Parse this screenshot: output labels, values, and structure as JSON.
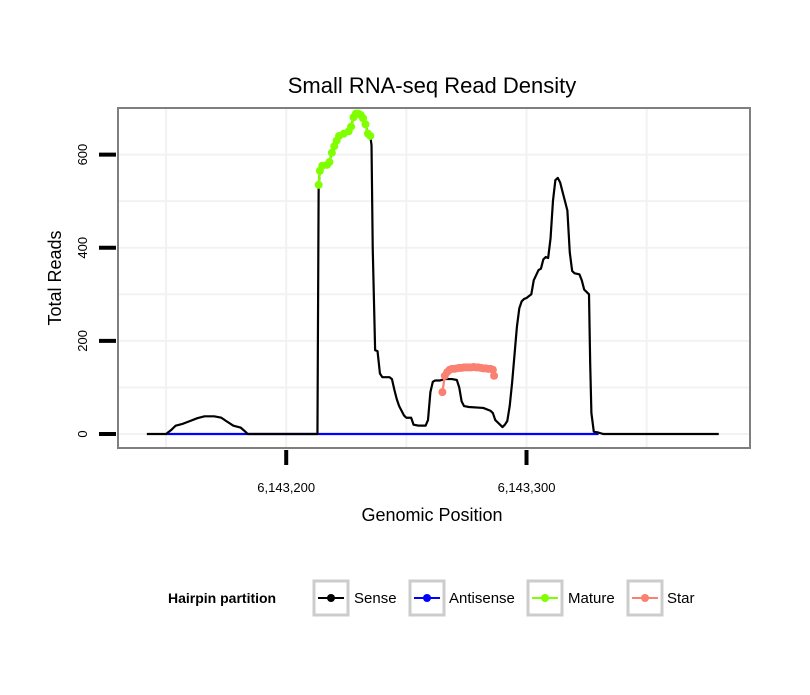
{
  "chart_data": {
    "type": "line",
    "title": "Small RNA-seq Read Density",
    "xlabel": "Genomic Position",
    "ylabel": "Total Reads",
    "xlim": [
      6143130,
      6143393
    ],
    "ylim": [
      -30,
      700
    ],
    "x_ticks": [
      {
        "value": 6143200,
        "label": "6,143,200"
      },
      {
        "value": 6143300,
        "label": "6,143,300"
      }
    ],
    "y_ticks": [
      {
        "value": 0,
        "label": "0"
      },
      {
        "value": 200,
        "label": "200"
      },
      {
        "value": 400,
        "label": "400"
      },
      {
        "value": 600,
        "label": "600"
      }
    ],
    "grid": true,
    "legend": {
      "title": "Hairpin partition",
      "position": "bottom",
      "entries": [
        {
          "name": "Sense",
          "color": "#000000"
        },
        {
          "name": "Antisense",
          "color": "#0000ff"
        },
        {
          "name": "Mature",
          "color": "#7fff00"
        },
        {
          "name": "Star",
          "color": "#fa8072"
        }
      ]
    },
    "series": [
      {
        "name": "Sense",
        "color": "#000000",
        "style": "line",
        "points": [
          [
            6143142,
            0
          ],
          [
            6143150,
            0
          ],
          [
            6143152,
            8
          ],
          [
            6143154,
            18
          ],
          [
            6143157,
            22
          ],
          [
            6143160,
            28
          ],
          [
            6143163,
            34
          ],
          [
            6143166,
            38
          ],
          [
            6143170,
            38
          ],
          [
            6143173,
            35
          ],
          [
            6143175,
            28
          ],
          [
            6143178,
            18
          ],
          [
            6143181,
            14
          ],
          [
            6143183,
            5
          ],
          [
            6143184,
            0
          ],
          [
            6143200,
            0
          ],
          [
            6143213,
            0
          ],
          [
            6143213.5,
            535
          ],
          [
            6143214,
            565
          ],
          [
            6143215,
            576
          ],
          [
            6143217,
            578
          ],
          [
            6143218,
            584
          ],
          [
            6143219,
            604
          ],
          [
            6143220,
            618
          ],
          [
            6143221,
            630
          ],
          [
            6143222,
            640
          ],
          [
            6143224,
            645
          ],
          [
            6143226,
            650
          ],
          [
            6143227,
            660
          ],
          [
            6143228,
            680
          ],
          [
            6143229,
            688
          ],
          [
            6143230,
            688
          ],
          [
            6143231,
            685
          ],
          [
            6143232,
            678
          ],
          [
            6143233,
            665
          ],
          [
            6143234,
            645
          ],
          [
            6143235,
            640
          ],
          [
            6143235.5,
            620
          ],
          [
            6143236,
            400
          ],
          [
            6143236.5,
            290
          ],
          [
            6143237,
            180
          ],
          [
            6143238,
            178
          ],
          [
            6143239,
            130
          ],
          [
            6143240,
            122
          ],
          [
            6143243,
            122
          ],
          [
            6143244,
            118
          ],
          [
            6143245,
            95
          ],
          [
            6143246,
            75
          ],
          [
            6143247,
            60
          ],
          [
            6143248,
            50
          ],
          [
            6143249,
            40
          ],
          [
            6143250,
            35
          ],
          [
            6143252,
            35
          ],
          [
            6143253,
            20
          ],
          [
            6143255,
            18
          ],
          [
            6143258,
            18
          ],
          [
            6143259,
            30
          ],
          [
            6143260,
            90
          ],
          [
            6143261,
            112
          ],
          [
            6143262,
            115
          ],
          [
            6143264,
            115
          ],
          [
            6143266,
            118
          ],
          [
            6143269,
            118
          ],
          [
            6143271,
            116
          ],
          [
            6143272,
            100
          ],
          [
            6143273,
            70
          ],
          [
            6143274,
            60
          ],
          [
            6143276,
            58
          ],
          [
            6143282,
            56
          ],
          [
            6143285,
            50
          ],
          [
            6143286,
            45
          ],
          [
            6143287,
            30
          ],
          [
            6143288,
            25
          ],
          [
            6143290,
            15
          ],
          [
            6143291,
            20
          ],
          [
            6143292,
            28
          ],
          [
            6143293,
            60
          ],
          [
            6143294,
            110
          ],
          [
            6143295,
            170
          ],
          [
            6143296,
            230
          ],
          [
            6143297,
            270
          ],
          [
            6143298,
            285
          ],
          [
            6143299,
            290
          ],
          [
            6143300,
            292
          ],
          [
            6143302,
            300
          ],
          [
            6143303,
            330
          ],
          [
            6143305,
            352
          ],
          [
            6143306,
            355
          ],
          [
            6143307,
            375
          ],
          [
            6143308,
            380
          ],
          [
            6143309,
            378
          ],
          [
            6143310,
            420
          ],
          [
            6143311,
            500
          ],
          [
            6143312,
            545
          ],
          [
            6143313,
            550
          ],
          [
            6143314,
            540
          ],
          [
            6143315,
            520
          ],
          [
            6143316,
            500
          ],
          [
            6143317,
            480
          ],
          [
            6143318,
            390
          ],
          [
            6143319,
            350
          ],
          [
            6143320,
            345
          ],
          [
            6143322,
            343
          ],
          [
            6143323,
            330
          ],
          [
            6143324,
            310
          ],
          [
            6143325,
            305
          ],
          [
            6143326,
            300
          ],
          [
            6143326.5,
            150
          ],
          [
            6143327,
            45
          ],
          [
            6143328,
            5
          ],
          [
            6143330,
            3
          ],
          [
            6143332,
            0
          ],
          [
            6143350,
            0
          ],
          [
            6143370,
            0
          ],
          [
            6143380,
            0
          ]
        ]
      },
      {
        "name": "Antisense",
        "color": "#0000ff",
        "style": "line",
        "points": [
          [
            6143150,
            0
          ],
          [
            6143330,
            0
          ]
        ]
      },
      {
        "name": "Mature",
        "color": "#7fff00",
        "style": "line+points",
        "points": [
          [
            6143213.5,
            535
          ],
          [
            6143214,
            565
          ],
          [
            6143215,
            576
          ],
          [
            6143217,
            578
          ],
          [
            6143218,
            584
          ],
          [
            6143219,
            604
          ],
          [
            6143220,
            618
          ],
          [
            6143221,
            630
          ],
          [
            6143222,
            640
          ],
          [
            6143224,
            645
          ],
          [
            6143226,
            650
          ],
          [
            6143227,
            660
          ],
          [
            6143228,
            680
          ],
          [
            6143229,
            688
          ],
          [
            6143230,
            688
          ],
          [
            6143231,
            685
          ],
          [
            6143232,
            678
          ],
          [
            6143233,
            665
          ],
          [
            6143234,
            645
          ],
          [
            6143235,
            640
          ]
        ]
      },
      {
        "name": "Star",
        "color": "#fa8072",
        "style": "line+points",
        "points": [
          [
            6143265,
            90
          ],
          [
            6143266,
            125
          ],
          [
            6143267,
            133
          ],
          [
            6143268,
            138
          ],
          [
            6143269,
            140
          ],
          [
            6143270,
            140
          ],
          [
            6143271,
            141
          ],
          [
            6143272,
            142
          ],
          [
            6143273,
            142
          ],
          [
            6143274,
            143
          ],
          [
            6143275,
            143
          ],
          [
            6143276,
            143
          ],
          [
            6143277,
            143
          ],
          [
            6143278,
            144
          ],
          [
            6143279,
            143
          ],
          [
            6143280,
            143
          ],
          [
            6143281,
            142
          ],
          [
            6143282,
            141
          ],
          [
            6143283,
            141
          ],
          [
            6143284,
            140
          ],
          [
            6143285,
            140
          ],
          [
            6143286,
            138
          ],
          [
            6143286.5,
            125
          ]
        ]
      }
    ]
  }
}
